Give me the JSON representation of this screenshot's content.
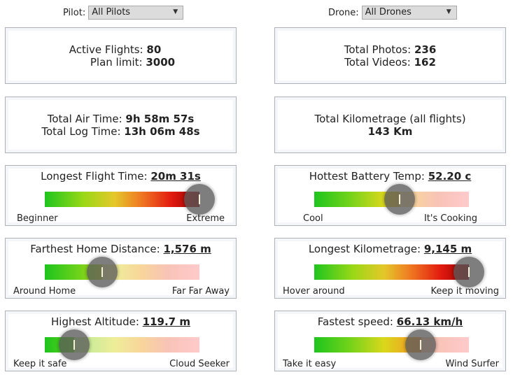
{
  "filters": {
    "pilot": {
      "label": "Pilot:",
      "value": "All Pilots"
    },
    "drone": {
      "label": "Drone:",
      "value": "All Drones"
    }
  },
  "stats": {
    "active_flights": {
      "label": "Active Flights:",
      "value": "80"
    },
    "plan_limit": {
      "label": "Plan limit:",
      "value": "3000"
    },
    "total_photos": {
      "label": "Total Photos:",
      "value": "236"
    },
    "total_videos": {
      "label": "Total Videos:",
      "value": "162"
    },
    "total_air_time": {
      "label": "Total Air Time:",
      "value": "9h 58m 57s"
    },
    "total_log_time": {
      "label": "Total Log Time:",
      "value": "13h 06m 48s"
    },
    "total_kilometrage": {
      "label": "Total Kilometrage (all flights)",
      "value": "143 Km"
    }
  },
  "gauges": {
    "longest_flight_time": {
      "label": "Longest Flight Time:",
      "value": "20m 31s",
      "left": "Beginner",
      "right": "Extreme",
      "level": 1.0
    },
    "hottest_battery_temp": {
      "label": "Hottest Battery Temp:",
      "value": "52.20 c",
      "left": "Cool",
      "right": "It's Cooking",
      "level": 0.55
    },
    "farthest_home_distance": {
      "label": "Farthest Home Distance:",
      "value": "1,576 m",
      "left": "Around Home",
      "right": "Far Far Away",
      "level": 0.37
    },
    "longest_kilometrage": {
      "label": "Longest Kilometrage:",
      "value": "9,145 m",
      "left": "Hover around",
      "right": "Keep it moving",
      "level": 1.0
    },
    "highest_altitude": {
      "label": "Highest Altitude:",
      "value": "119.7 m",
      "left": "Keep it safe",
      "right": "Cloud Seeker",
      "level": 0.19
    },
    "fastest_speed": {
      "label": "Fastest speed:",
      "value": "66.13 km/h",
      "left": "Take it easy",
      "right": "Wind Surfer",
      "level": 0.69
    }
  }
}
